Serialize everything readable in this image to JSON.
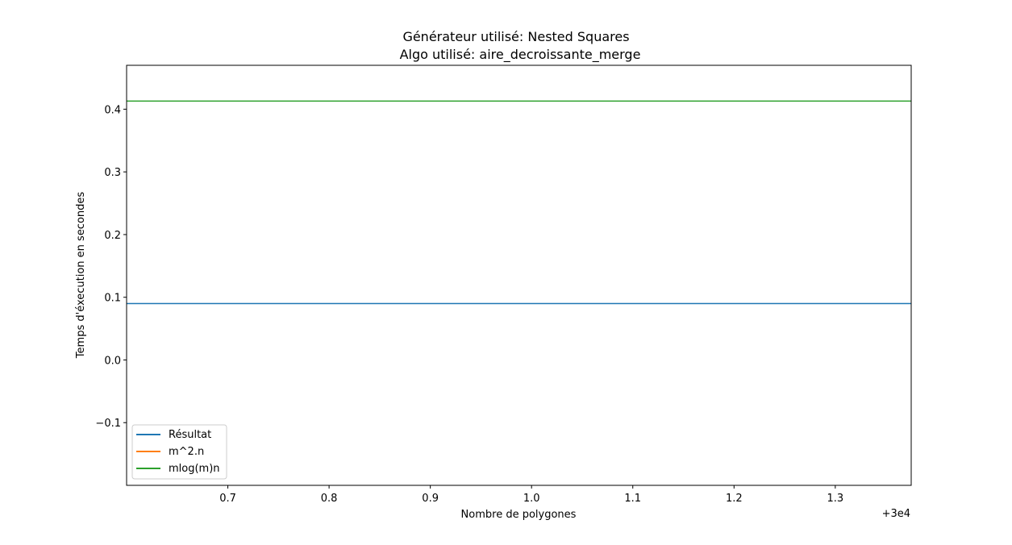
{
  "chart_data": {
    "type": "line",
    "title_line1": "Générateur utilisé: Nested Squares",
    "title_line2": "Algo utilisé: aire_decroissante_merge",
    "xlabel": "Nombre de polygones",
    "ylabel": "Temps d'éxecution en secondes",
    "x_offset_label": "+3e4",
    "xlim": [
      0.6,
      1.375
    ],
    "ylim": [
      -0.2,
      0.47
    ],
    "xticks": [
      0.7,
      0.8,
      0.9,
      1.0,
      1.1,
      1.2,
      1.3
    ],
    "xtick_labels": [
      "0.7",
      "0.8",
      "0.9",
      "1.0",
      "1.1",
      "1.2",
      "1.3"
    ],
    "yticks": [
      -0.1,
      0.0,
      0.1,
      0.2,
      0.3,
      0.4
    ],
    "ytick_labels": [
      "−0.1",
      "0.0",
      "0.1",
      "0.2",
      "0.3",
      "0.4"
    ],
    "series": [
      {
        "name": "Résultat",
        "color": "#1f77b4",
        "x": [
          0.6,
          1.375
        ],
        "y": [
          0.09,
          0.09
        ]
      },
      {
        "name": "m^2.n",
        "color": "#ff7f0e",
        "x": [],
        "y": []
      },
      {
        "name": "mlog(m)n",
        "color": "#2ca02c",
        "x": [
          0.6,
          1.375
        ],
        "y": [
          0.413,
          0.413
        ]
      }
    ],
    "legend_position": "lower-left",
    "grid": false
  }
}
